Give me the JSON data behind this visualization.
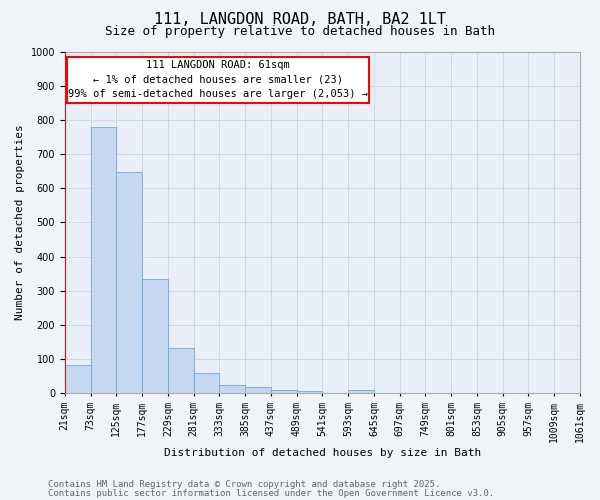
{
  "title_line1": "111, LANGDON ROAD, BATH, BA2 1LT",
  "title_line2": "Size of property relative to detached houses in Bath",
  "xlabel": "Distribution of detached houses by size in Bath",
  "ylabel": "Number of detached properties",
  "bar_values": [
    83,
    780,
    648,
    333,
    133,
    58,
    23,
    18,
    9,
    5,
    0,
    8,
    0,
    0,
    0,
    0,
    0,
    0,
    0,
    0
  ],
  "categories": [
    "21sqm",
    "73sqm",
    "125sqm",
    "177sqm",
    "229sqm",
    "281sqm",
    "333sqm",
    "385sqm",
    "437sqm",
    "489sqm",
    "541sqm",
    "593sqm",
    "645sqm",
    "697sqm",
    "749sqm",
    "801sqm",
    "853sqm",
    "905sqm",
    "957sqm",
    "1009sqm",
    "1061sqm"
  ],
  "bar_color": "#c5d8f0",
  "bar_edge_color": "#6fa8d4",
  "annotation_text_line1": "111 LANGDON ROAD: 61sqm",
  "annotation_text_line2": "← 1% of detached houses are smaller (23)",
  "annotation_text_line3": "99% of semi-detached houses are larger (2,053) →",
  "ylim": [
    0,
    1000
  ],
  "yticks": [
    0,
    100,
    200,
    300,
    400,
    500,
    600,
    700,
    800,
    900,
    1000
  ],
  "grid_color": "#c8d4e0",
  "bg_color": "#e8eff8",
  "fig_bg_color": "#f0f4f8",
  "footer_line1": "Contains HM Land Registry data © Crown copyright and database right 2025.",
  "footer_line2": "Contains public sector information licensed under the Open Government Licence v3.0.",
  "title_fontsize": 11,
  "subtitle_fontsize": 9,
  "axis_label_fontsize": 8,
  "tick_fontsize": 7,
  "annotation_fontsize": 7.5,
  "footer_fontsize": 6.5
}
